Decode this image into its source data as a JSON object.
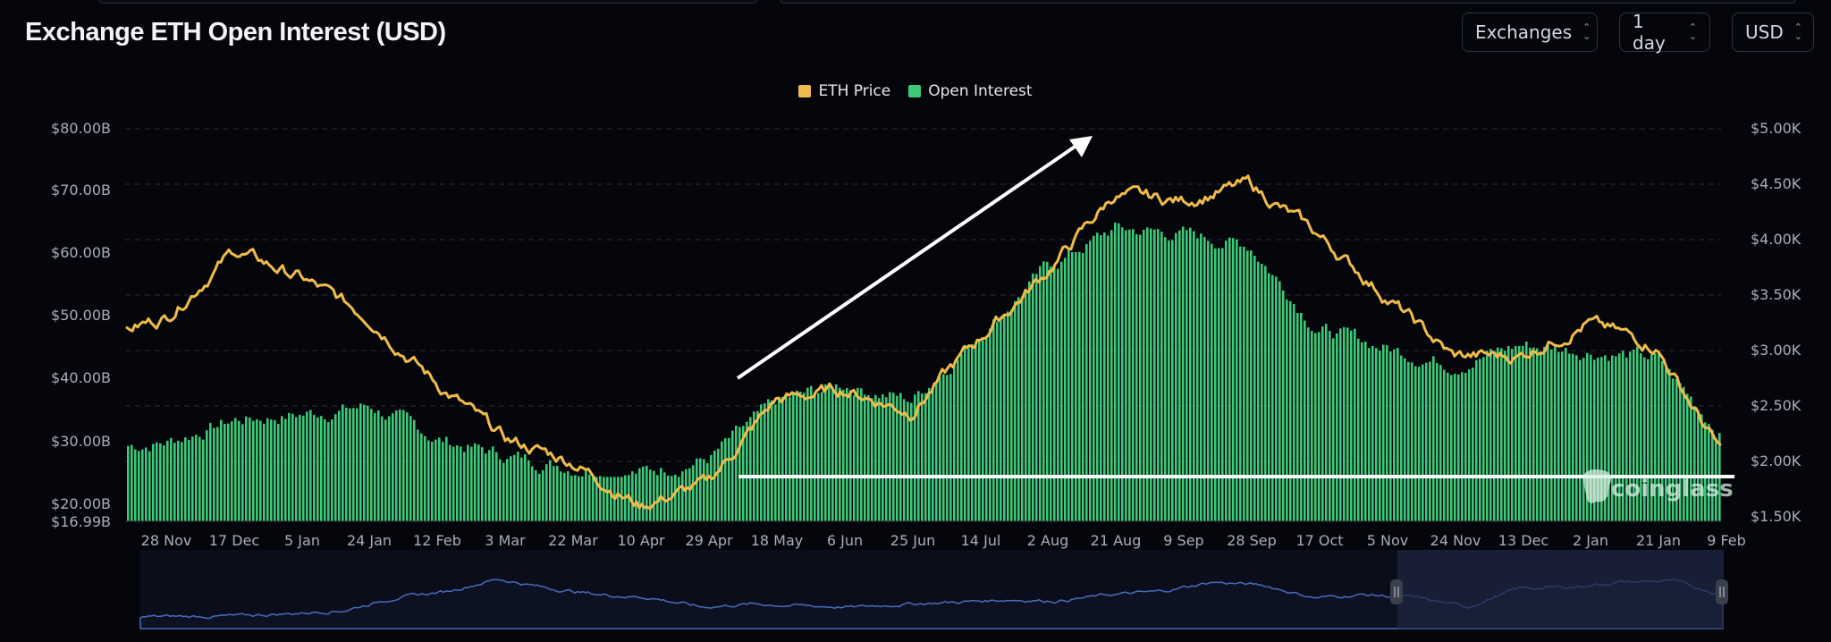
{
  "header": {
    "title": "Exchange ETH Open Interest (USD)",
    "selects": [
      {
        "id": "exchanges",
        "label": "Exchanges"
      },
      {
        "id": "interval",
        "label": "1 day"
      },
      {
        "id": "currency",
        "label": "USD"
      }
    ]
  },
  "legend": [
    {
      "label": "ETH Price",
      "color": "#f0bb4a"
    },
    {
      "label": "Open Interest",
      "color": "#3cc97a"
    }
  ],
  "axes": {
    "left": [
      "$80.00B",
      "$70.00B",
      "$60.00B",
      "$50.00B",
      "$40.00B",
      "$30.00B",
      "$20.00B",
      "$16.99B"
    ],
    "right": [
      "$5.00K",
      "$4.50K",
      "$4.00K",
      "$3.50K",
      "$3.00K",
      "$2.50K",
      "$2.00K",
      "$1.50K"
    ],
    "x": [
      "28 Nov",
      "17 Dec",
      "5 Jan",
      "24 Jan",
      "12 Feb",
      "3 Mar",
      "22 Mar",
      "10 Apr",
      "29 Apr",
      "18 May",
      "6 Jun",
      "25 Jun",
      "14 Jul",
      "2 Aug",
      "21 Aug",
      "9 Sep",
      "28 Sep",
      "17 Oct",
      "5 Nov",
      "24 Nov",
      "13 Dec",
      "2 Jan",
      "21 Jan",
      "9 Feb"
    ]
  },
  "watermark": "coinglass",
  "colors": {
    "background": "#05060b",
    "price_line": "#f0bb4a",
    "oi_bars": "#3cc97a",
    "grid": "#2a2d36",
    "annotation": "#ffffff",
    "navigator_line": "#4a6bbf",
    "navigator_fill": "#0d1222",
    "navigator_selection": "#1e2740"
  },
  "chart_data": {
    "type": "bar+line",
    "title": "Exchange ETH Open Interest (USD)",
    "xlabel": "",
    "ylabel_left": "Open Interest (USD)",
    "ylabel_right": "ETH Price (USD)",
    "ylim_left": [
      16.99,
      80
    ],
    "ylim_right": [
      1500,
      5000
    ],
    "grid": true,
    "legend_position": "top-center",
    "categories": [
      "28 Nov",
      "17 Dec",
      "5 Jan",
      "24 Jan",
      "12 Feb",
      "3 Mar",
      "22 Mar",
      "10 Apr",
      "29 Apr",
      "18 May",
      "6 Jun",
      "25 Jun",
      "14 Jul",
      "2 Aug",
      "21 Aug",
      "9 Sep",
      "28 Sep",
      "17 Oct",
      "5 Nov",
      "24 Nov",
      "13 Dec",
      "2 Jan",
      "21 Jan",
      "9 Feb"
    ],
    "series": [
      {
        "name": "Open Interest",
        "axis": "left",
        "unit": "USD B",
        "type": "bar",
        "values": [
          23.5,
          27.5,
          28.5,
          30.0,
          24.0,
          21.0,
          19.0,
          18.0,
          20.5,
          30.5,
          34.0,
          31.0,
          43.0,
          55.0,
          62.0,
          61.0,
          59.0,
          44.0,
          40.5,
          37.5,
          41.0,
          40.0,
          38.5,
          24.5
        ]
      },
      {
        "name": "ETH Price",
        "axis": "right",
        "unit": "USD",
        "type": "line",
        "values": [
          3300,
          3900,
          3650,
          3300,
          2700,
          2200,
          2000,
          1600,
          1800,
          2550,
          2650,
          2450,
          3100,
          3700,
          4400,
          4350,
          4500,
          4050,
          3500,
          2950,
          2950,
          3250,
          3050,
          2050
        ]
      }
    ],
    "annotations": [
      {
        "type": "arrow",
        "from": "29 Apr",
        "to": "21 Aug",
        "description": "upward trend arrow"
      },
      {
        "type": "hline",
        "value_left": 23.5,
        "from": "1 May",
        "to": "9 Feb",
        "description": "horizontal support line"
      }
    ]
  }
}
